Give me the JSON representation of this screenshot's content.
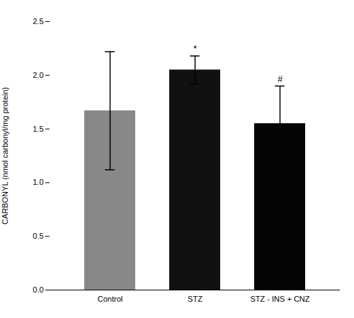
{
  "chart_data": {
    "type": "bar",
    "categories": [
      "Control",
      "STZ",
      "STZ - INS + CNZ"
    ],
    "values": [
      1.67,
      2.05,
      1.55
    ],
    "errors": [
      0.55,
      0.13,
      0.35
    ],
    "annotations": [
      null,
      "*",
      "#"
    ],
    "colors": [
      "#888888",
      "#111111",
      "#050505"
    ],
    "ylabel": "CARBONYL (nmol carbonyl/mg protein)",
    "ylim": [
      0,
      2.5
    ],
    "yticks": [
      {
        "value": 0,
        "label": "0.0"
      },
      0.5,
      {
        "value": 1,
        "label": "1.0"
      },
      1.5,
      {
        "value": 2,
        "label": "2.0"
      },
      2.5
    ],
    "grid": false
  }
}
